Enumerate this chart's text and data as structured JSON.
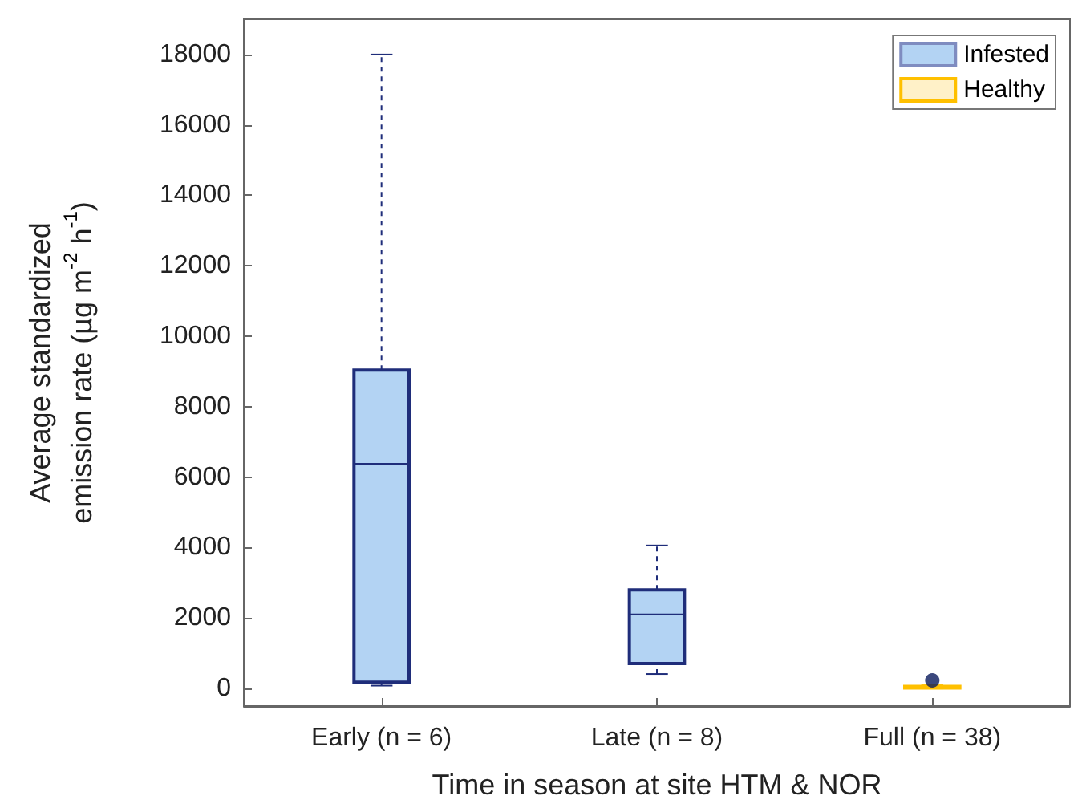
{
  "chart_data": {
    "type": "box",
    "xlabel": "Time in season at site HTM & NOR",
    "ylabel": "Average standardized\nemission rate (µg m$^{-2}$ h$^{-1}$)",
    "categories": [
      "Early (n = 6)",
      "Late (n = 8)",
      "Full (n = 38)"
    ],
    "series": [
      {
        "name": "Infested",
        "color": "#b3d3f3",
        "boxes": [
          {
            "low": 80,
            "q1": 180,
            "median": 6380,
            "q3": 9040,
            "high": 18000
          },
          {
            "low": 410,
            "q1": 710,
            "median": 2100,
            "q3": 2800,
            "high": 4060
          },
          null
        ]
      },
      {
        "name": "Healthy",
        "color": "#fff1c8",
        "boxes": [
          null,
          null,
          {
            "low": 0,
            "q1": 10,
            "median": 40,
            "q3": 60,
            "high": 90,
            "outliers": [
              230
            ]
          }
        ]
      }
    ],
    "ylim": [
      -500,
      19000
    ],
    "yticks": [
      0,
      2000,
      4000,
      6000,
      8000,
      10000,
      12000,
      14000,
      16000,
      18000
    ],
    "grid": false,
    "legend": "top right"
  }
}
